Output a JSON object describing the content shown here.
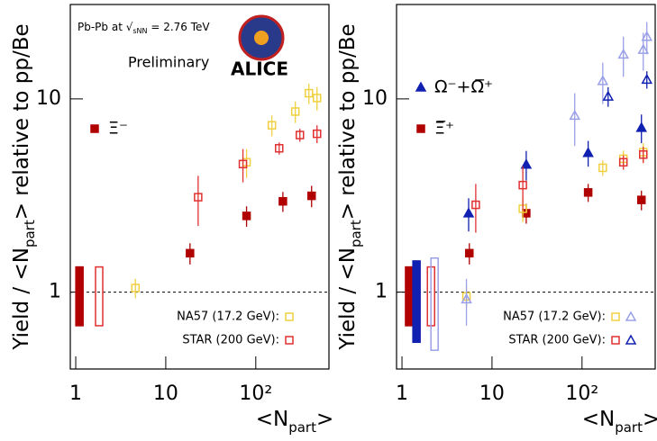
{
  "chart_data": [
    {
      "type": "scatter",
      "xlog": true,
      "ylog": true,
      "xlim": [
        0.87,
        650
      ],
      "ylim": [
        0.4,
        30.8
      ],
      "xticks": [
        1,
        10,
        {
          "value": 100,
          "label": "10²"
        }
      ],
      "yticks": [
        1,
        10
      ],
      "x_label": [
        "<N",
        "part",
        ">"
      ],
      "y_label": [
        "Yield / <N",
        "part",
        "> relative to pp/Be"
      ],
      "ref_line": 1,
      "annotations": {
        "energy": [
          "Pb-Pb at √",
          "s",
          "NN",
          " = 2.76 TeV"
        ],
        "preliminary": "Preliminary",
        "logo": "ALICE"
      },
      "norm_boxes": [
        {
          "x": 1.1,
          "low": 0.67,
          "high": 1.35,
          "color": "#b00000",
          "filled": true
        },
        {
          "x": 1.82,
          "low": 0.67,
          "high": 1.35,
          "color": "#e03030",
          "filled": false
        }
      ],
      "series": [
        {
          "name": "Ξ⁻",
          "color": "#b00000",
          "marker": "square",
          "filled": true,
          "x": [
            18.6,
            79,
            200,
            417
          ],
          "values": [
            1.59,
            2.48,
            2.95,
            3.15
          ],
          "errors": [
            0.2,
            0.3,
            0.35,
            0.4
          ]
        },
        {
          "name": "NA57 (17.2 GeV):",
          "color": "#f0d040",
          "marker": "square",
          "filled": false,
          "x": [
            4.6,
            79,
            151,
            275,
            389,
            479
          ],
          "values": [
            1.05,
            4.7,
            7.3,
            8.6,
            10.7,
            10.1
          ],
          "errors": [
            0.12,
            0.8,
            0.9,
            1.1,
            1.3,
            1.4
          ]
        },
        {
          "name": "STAR (200 GeV):",
          "color": "#e03030",
          "marker": "square",
          "filled": false,
          "x": [
            22.9,
            72,
            182,
            309,
            479
          ],
          "values": [
            3.1,
            4.6,
            5.55,
            6.5,
            6.6
          ],
          "errors": [
            0.9,
            0.9,
            0.4,
            0.5,
            0.7
          ]
        }
      ]
    },
    {
      "type": "scatter",
      "xlog": true,
      "ylog": true,
      "xlim": [
        0.87,
        650
      ],
      "ylim": [
        0.4,
        30.8
      ],
      "xticks": [
        1,
        10,
        {
          "value": 100,
          "label": "10²"
        }
      ],
      "yticks": [
        1,
        10
      ],
      "x_label": [
        "<N",
        "part",
        ">"
      ],
      "y_label": [
        "Yield / <N",
        "part",
        "> relative to pp/Be"
      ],
      "ref_line": 1,
      "norm_boxes": [
        {
          "x": 1.2,
          "low": 0.67,
          "high": 1.35,
          "color": "#b00000",
          "filled": true
        },
        {
          "x": 1.45,
          "low": 0.55,
          "high": 1.45,
          "color": "#1020b0",
          "filled": true
        },
        {
          "x": 2.1,
          "low": 0.67,
          "high": 1.35,
          "color": "#e03030",
          "filled": false
        },
        {
          "x": 2.3,
          "low": 0.5,
          "high": 1.5,
          "color": "#9aa0e8",
          "filled": false
        }
      ],
      "series": [
        {
          "name": "Ω⁻+Ω̅⁺",
          "color": "#1020b0",
          "marker": "triangle",
          "filled": true,
          "x": [
            5.5,
            24,
            117,
            457
          ],
          "values": [
            2.56,
            4.58,
            5.26,
            7.1
          ],
          "errors": [
            0.5,
            0.8,
            0.8,
            1.2
          ]
        },
        {
          "name": "Ξ̅⁺",
          "color": "#b00000",
          "marker": "square",
          "filled": true,
          "x": [
            5.6,
            24,
            117,
            457
          ],
          "values": [
            1.59,
            2.56,
            3.28,
            3.0
          ],
          "errors": [
            0.2,
            0.3,
            0.35,
            0.35
          ]
        },
        {
          "name": "NA57 (17.2 GeV):",
          "color": "#f0d040",
          "marker": "square",
          "filled": false,
          "x": [
            5.2,
            22,
            170,
            288,
            479
          ],
          "values": [
            0.95,
            2.7,
            4.4,
            4.9,
            5.3
          ],
          "errors": [
            0.12,
            0.4,
            0.4,
            0.5,
            0.6
          ]
        },
        {
          "color": "#9aa0e8",
          "marker": "triangle",
          "filled": false,
          "x": [
            5.2,
            83,
            170,
            288,
            479,
            525
          ],
          "values": [
            0.92,
            8.2,
            12.4,
            17,
            18,
            21
          ],
          "errors": [
            0.25,
            2.5,
            3,
            4,
            4,
            4
          ]
        },
        {
          "name": "STAR (200 GeV):",
          "color": "#e03030",
          "marker": "square",
          "filled": false,
          "x": [
            6.6,
            22,
            288,
            479
          ],
          "values": [
            2.83,
            3.58,
            4.7,
            5.15
          ],
          "errors": [
            0.8,
            0.9,
            0.4,
            0.5
          ]
        },
        {
          "color": "#1020b0",
          "marker": "triangle",
          "filled": false,
          "x": [
            195,
            525
          ],
          "values": [
            10.3,
            12.6
          ],
          "errors": [
            1.2,
            1.3
          ]
        }
      ]
    }
  ]
}
